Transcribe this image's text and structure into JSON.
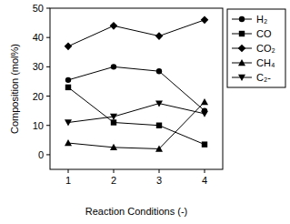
{
  "chart_data": {
    "type": "line",
    "x": [
      1,
      2,
      3,
      4
    ],
    "xlabel": "Reaction Conditions (-)",
    "ylabel": "Composition (mol%)",
    "xlim": [
      0.6,
      4.4
    ],
    "ylim": [
      -5,
      50
    ],
    "xticks": [
      1,
      2,
      3,
      4
    ],
    "yticks": [
      0,
      10,
      20,
      30,
      40,
      50
    ],
    "grid": false,
    "legend": "right",
    "series": [
      {
        "name": "H₂",
        "color": "#000000",
        "marker": "circle",
        "values": [
          25.5,
          30,
          28.5,
          15
        ]
      },
      {
        "name": "CO",
        "color": "#000000",
        "marker": "square",
        "values": [
          23,
          11,
          10,
          3.5
        ]
      },
      {
        "name": "CO₂",
        "color": "#000000",
        "marker": "diamond",
        "values": [
          37,
          44,
          40.5,
          46
        ]
      },
      {
        "name": "CH₄",
        "color": "#000000",
        "marker": "triangle-up",
        "values": [
          4,
          2.5,
          2,
          18
        ]
      },
      {
        "name": "C₂-",
        "color": "#000000",
        "marker": "triangle-down",
        "values": [
          11,
          13,
          17.5,
          14
        ]
      }
    ]
  }
}
